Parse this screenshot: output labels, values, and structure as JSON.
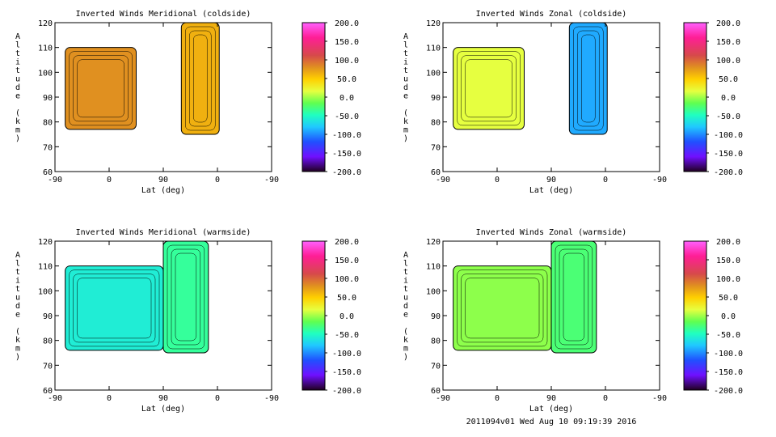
{
  "footer": "2011094v01 Wed Aug 10 09:19:39 2016",
  "chart_data": [
    {
      "type": "heatmap",
      "id": "tl",
      "title": "Inverted Winds Meridional (coldside)",
      "xlabel": "Lat (deg)",
      "ylabel": "Altitude (km)",
      "x_ticks": [
        "-90",
        "0",
        "90",
        "0",
        "-90"
      ],
      "y_ticks": [
        120,
        110,
        100,
        90,
        80,
        70,
        60
      ],
      "ylim": [
        60,
        120
      ],
      "colorbar": {
        "ticks": [
          "200.0",
          "150.0",
          "100.0",
          "50.0",
          "0.0",
          "-50.0",
          "-100.0",
          "-150.0",
          "-200.0"
        ],
        "range": [
          -200,
          200
        ]
      },
      "regions": [
        {
          "x_range": [
            -73,
            45
          ],
          "alt_range": [
            77,
            110
          ],
          "approx_value": 80
        },
        {
          "x_range": [
            120,
            183
          ],
          "alt_range": [
            75,
            120
          ],
          "approx_value": 60
        }
      ]
    },
    {
      "type": "heatmap",
      "id": "tr",
      "title": "Inverted Winds Zonal (coldside)",
      "xlabel": "Lat (deg)",
      "ylabel": "Altitude (km)",
      "x_ticks": [
        "-90",
        "0",
        "90",
        "0",
        "-90"
      ],
      "y_ticks": [
        120,
        110,
        100,
        90,
        80,
        70,
        60
      ],
      "ylim": [
        60,
        120
      ],
      "colorbar": {
        "ticks": [
          "200.0",
          "150.0",
          "100.0",
          "50.0",
          "0.0",
          "-50.0",
          "-100.0",
          "-150.0",
          "-200.0"
        ],
        "range": [
          -200,
          200
        ]
      },
      "regions": [
        {
          "x_range": [
            -73,
            45
          ],
          "alt_range": [
            77,
            110
          ],
          "approx_value": 10
        },
        {
          "x_range": [
            120,
            183
          ],
          "alt_range": [
            75,
            120
          ],
          "approx_value": -90
        }
      ]
    },
    {
      "type": "heatmap",
      "id": "bl",
      "title": "Inverted Winds Meridional (warmside)",
      "xlabel": "Lat (deg)",
      "ylabel": "Altitude (km)",
      "x_ticks": [
        "-90",
        "0",
        "90",
        "0",
        "-90"
      ],
      "y_ticks": [
        120,
        110,
        100,
        90,
        80,
        70,
        60
      ],
      "ylim": [
        60,
        120
      ],
      "colorbar": {
        "ticks": [
          "200.0",
          "150.0",
          "100.0",
          "50.0",
          "0.0",
          "-50.0",
          "-100.0",
          "-150.0",
          "-200.0"
        ],
        "range": [
          -200,
          200
        ]
      },
      "regions": [
        {
          "x_range": [
            -73,
            90
          ],
          "alt_range": [
            76,
            110
          ],
          "approx_value": -60
        },
        {
          "x_range": [
            90,
            165
          ],
          "alt_range": [
            75,
            120
          ],
          "approx_value": -40
        }
      ]
    },
    {
      "type": "heatmap",
      "id": "br",
      "title": "Inverted Winds Zonal (warmside)",
      "xlabel": "Lat (deg)",
      "ylabel": "Altitude (km)",
      "x_ticks": [
        "-90",
        "0",
        "90",
        "0",
        "-90"
      ],
      "y_ticks": [
        120,
        110,
        100,
        90,
        80,
        70,
        60
      ],
      "ylim": [
        60,
        120
      ],
      "colorbar": {
        "ticks": [
          "200.0",
          "150.0",
          "100.0",
          "50.0",
          "0.0",
          "-50.0",
          "-100.0",
          "-150.0",
          "-200.0"
        ],
        "range": [
          -200,
          200
        ]
      },
      "regions": [
        {
          "x_range": [
            -73,
            90
          ],
          "alt_range": [
            76,
            110
          ],
          "approx_value": -10
        },
        {
          "x_range": [
            90,
            165
          ],
          "alt_range": [
            75,
            120
          ],
          "approx_value": -30
        }
      ]
    }
  ]
}
